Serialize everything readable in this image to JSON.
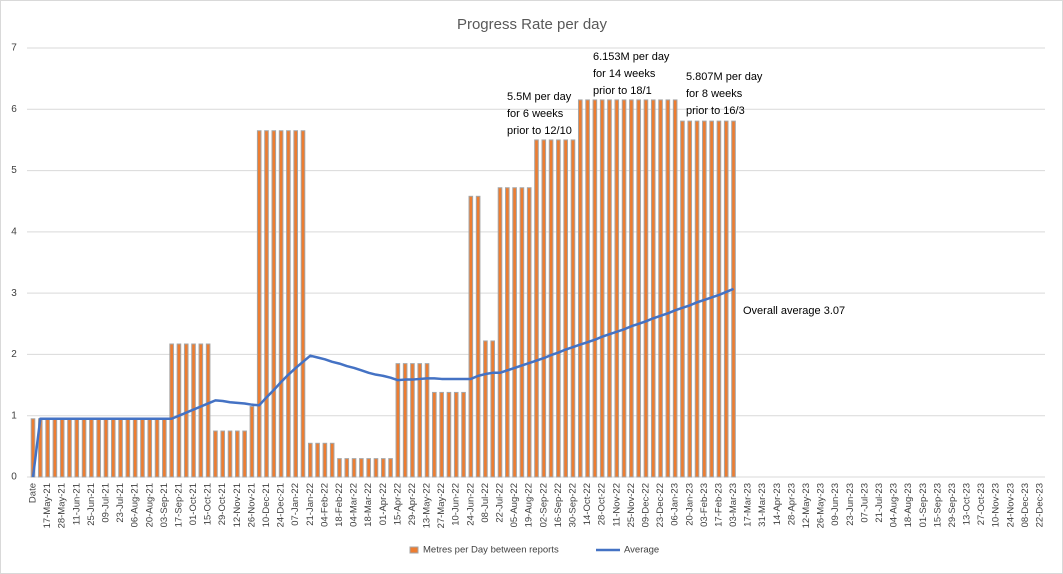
{
  "chart_data": {
    "type": "bar_line",
    "title": "Progress Rate per day",
    "categories": [
      "Date",
      null,
      "17-May-21",
      null,
      "28-May-21",
      null,
      "11-Jun-21",
      null,
      "25-Jun-21",
      null,
      "09-Jul-21",
      null,
      "23-Jul-21",
      null,
      "06-Aug-21",
      null,
      "20-Aug-21",
      null,
      "03-Sep-21",
      null,
      "17-Sep-21",
      null,
      "01-Oct-21",
      null,
      "15-Oct-21",
      null,
      "29-Oct-21",
      null,
      "12-Nov-21",
      null,
      "26-Nov-21",
      null,
      "10-Dec-21",
      null,
      "24-Dec-21",
      null,
      "07-Jan-22",
      null,
      "21-Jan-22",
      null,
      "04-Feb-22",
      null,
      "18-Feb-22",
      null,
      "04-Mar-22",
      null,
      "18-Mar-22",
      null,
      "01-Apr-22",
      null,
      "15-Apr-22",
      null,
      "29-Apr-22",
      null,
      "13-May-22",
      null,
      "27-May-22",
      null,
      "10-Jun-22",
      null,
      "24-Jun-22",
      null,
      "08-Jul-22",
      null,
      "22-Jul-22",
      null,
      "05-Aug-22",
      null,
      "19-Aug-22",
      null,
      "02-Sep-22",
      null,
      "16-Sep-22",
      null,
      "30-Sep-22",
      null,
      "14-Oct-22",
      null,
      "28-Oct-22",
      null,
      "11-Nov-22",
      null,
      "25-Nov-22",
      null,
      "09-Dec-22",
      null,
      "23-Dec-22",
      null,
      "06-Jan-23",
      null,
      "20-Jan-23",
      null,
      "03-Feb-23",
      null,
      "17-Feb-23",
      null,
      "03-Mar-23",
      null,
      "17-Mar-23",
      null,
      "31-Mar-23",
      null,
      "14-Apr-23",
      null,
      "28-Apr-23",
      null,
      "12-May-23",
      null,
      "26-May-23",
      null,
      "09-Jun-23",
      null,
      "23-Jun-23",
      null,
      "07-Jul-23",
      null,
      "21-Jul-23",
      null,
      "04-Aug-23",
      null,
      "18-Aug-23",
      null,
      "01-Sep-23",
      null,
      "15-Sep-23",
      null,
      "29-Sep-23",
      null,
      "13-Oct-23",
      null,
      "27-Oct-23",
      null,
      "10-Nov-23",
      null,
      "24-Nov-23",
      null,
      "08-Dec-23",
      null,
      "22-Dec-23"
    ],
    "series": [
      {
        "name": "Metres per Day between reports",
        "type": "bar",
        "color": "#ed7d31",
        "edge": "#a5a5a5",
        "values": [
          0.95,
          0.95,
          0.95,
          0.95,
          0.95,
          0.95,
          0.95,
          0.95,
          0.95,
          0.95,
          0.95,
          0.95,
          0.95,
          0.95,
          0.95,
          0.95,
          0.95,
          0.95,
          0.95,
          2.17,
          2.17,
          2.17,
          2.17,
          2.17,
          2.17,
          0.75,
          0.75,
          0.75,
          0.75,
          0.75,
          1.15,
          5.65,
          5.65,
          5.65,
          5.65,
          5.65,
          5.65,
          5.65,
          0.55,
          0.55,
          0.55,
          0.55,
          0.3,
          0.3,
          0.3,
          0.3,
          0.3,
          0.3,
          0.3,
          0.3,
          1.85,
          1.85,
          1.85,
          1.85,
          1.85,
          1.38,
          1.38,
          1.38,
          1.38,
          1.38,
          4.58,
          4.58,
          2.22,
          2.22,
          4.72,
          4.72,
          4.72,
          4.72,
          4.72,
          5.5,
          5.5,
          5.5,
          5.5,
          5.5,
          5.5,
          6.153,
          6.153,
          6.153,
          6.153,
          6.153,
          6.153,
          6.153,
          6.153,
          6.153,
          6.153,
          6.153,
          6.153,
          6.153,
          6.153,
          5.807,
          5.807,
          5.807,
          5.807,
          5.807,
          5.807,
          5.807,
          5.807,
          null,
          null,
          null,
          null,
          null,
          null,
          null,
          null,
          null,
          null,
          null,
          null,
          null,
          null,
          null,
          null,
          null,
          null,
          null,
          null,
          null,
          null,
          null,
          null,
          null,
          null,
          null,
          null,
          null,
          null,
          null,
          null,
          null,
          null,
          null,
          null,
          null,
          null,
          null,
          null,
          null,
          null
        ]
      },
      {
        "name": "Average",
        "type": "line",
        "color": "#4472c4",
        "values": [
          0,
          0.95,
          0.95,
          0.95,
          0.95,
          0.95,
          0.95,
          0.95,
          0.95,
          0.95,
          0.95,
          0.95,
          0.95,
          0.95,
          0.95,
          0.95,
          0.95,
          0.95,
          0.95,
          0.95,
          1.0,
          1.05,
          1.1,
          1.15,
          1.2,
          1.25,
          1.24,
          1.22,
          1.21,
          1.2,
          1.18,
          1.17,
          1.3,
          1.42,
          1.55,
          1.67,
          1.78,
          1.88,
          1.98,
          1.95,
          1.92,
          1.88,
          1.85,
          1.81,
          1.78,
          1.74,
          1.7,
          1.67,
          1.65,
          1.62,
          1.58,
          1.59,
          1.59,
          1.6,
          1.61,
          1.61,
          1.6,
          1.6,
          1.6,
          1.6,
          1.6,
          1.65,
          1.68,
          1.7,
          1.7,
          1.74,
          1.78,
          1.82,
          1.86,
          1.9,
          1.94,
          1.99,
          2.03,
          2.08,
          2.12,
          2.16,
          2.2,
          2.24,
          2.29,
          2.33,
          2.37,
          2.41,
          2.46,
          2.5,
          2.54,
          2.59,
          2.63,
          2.67,
          2.72,
          2.76,
          2.8,
          2.85,
          2.89,
          2.93,
          2.97,
          3.02,
          3.07,
          null,
          null,
          null,
          null,
          null,
          null,
          null,
          null,
          null,
          null,
          null,
          null,
          null,
          null,
          null,
          null,
          null,
          null,
          null,
          null,
          null,
          null,
          null,
          null,
          null,
          null,
          null,
          null,
          null,
          null,
          null,
          null,
          null,
          null,
          null,
          null,
          null,
          null,
          null,
          null,
          null,
          null
        ]
      }
    ],
    "ylim": [
      0,
      7
    ],
    "yticks": [
      0,
      1,
      2,
      3,
      4,
      5,
      6,
      7
    ],
    "grid": true,
    "legend": "bottom",
    "annotations": [
      {
        "lines": [
          "5.5M per day",
          "for 6 weeks",
          "prior to 12/10"
        ]
      },
      {
        "lines": [
          "6.153M per day",
          "for 14 weeks",
          "prior to 18/1"
        ]
      },
      {
        "lines": [
          "5.807M per day",
          "for 8 weeks",
          "prior to 16/3"
        ]
      },
      {
        "lines": [
          "Overall average 3.07"
        ]
      }
    ]
  }
}
